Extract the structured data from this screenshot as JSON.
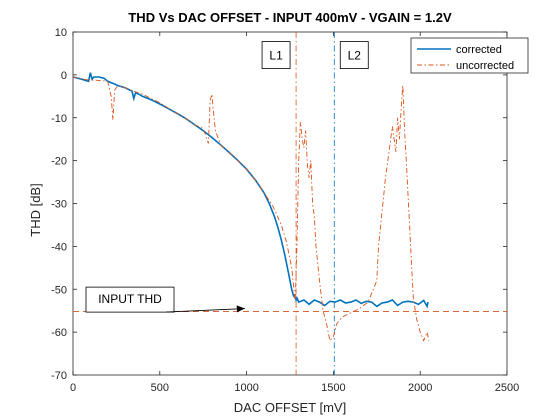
{
  "chart_data": {
    "type": "line",
    "title": "THD Vs DAC OFFSET - INPUT 400mV - VGAIN = 1.2V",
    "xlabel": "DAC OFFSET [mV]",
    "ylabel": "THD [dB]",
    "xlim": [
      0,
      2500
    ],
    "ylim": [
      -70,
      10
    ],
    "xticks": [
      0,
      500,
      1000,
      1500,
      2000,
      2500
    ],
    "yticks": [
      10,
      0,
      -10,
      -20,
      -30,
      -40,
      -50,
      -60,
      -70
    ],
    "grid": false,
    "legend_position": "top-right",
    "colors": {
      "corrected": "#0072BD",
      "uncorrected": "#D95319",
      "axis": "#262626"
    },
    "series": [
      {
        "name": "corrected",
        "style": "solid",
        "x": [
          0,
          50,
          90,
          100,
          110,
          120,
          150,
          180,
          200,
          230,
          260,
          300,
          340,
          350,
          360,
          380,
          400,
          450,
          500,
          550,
          600,
          650,
          700,
          750,
          800,
          850,
          900,
          950,
          1000,
          1050,
          1100,
          1130,
          1160,
          1180,
          1200,
          1220,
          1240,
          1260,
          1270,
          1280,
          1285,
          1290,
          1300,
          1330,
          1360,
          1390,
          1420,
          1450,
          1480,
          1510,
          1540,
          1570,
          1600,
          1630,
          1660,
          1690,
          1720,
          1750,
          1780,
          1810,
          1840,
          1870,
          1900,
          1930,
          1960,
          1990,
          2020,
          2040,
          2045
        ],
        "y": [
          -0.5,
          -1,
          -1.5,
          0.5,
          -1,
          -0.5,
          -0.5,
          -0.8,
          -1.5,
          -2,
          -2.5,
          -3,
          -3.8,
          -5.5,
          -4.2,
          -4.5,
          -5,
          -5.8,
          -6.8,
          -7.9,
          -9,
          -10.2,
          -11.6,
          -13,
          -14.6,
          -16.3,
          -18.1,
          -20,
          -22,
          -24.5,
          -27.5,
          -30,
          -33,
          -35.5,
          -38.5,
          -42,
          -46,
          -50,
          -51.5,
          -52,
          -52.5,
          -52,
          -53,
          -52.5,
          -53.5,
          -52.5,
          -53,
          -53.8,
          -52.8,
          -53,
          -52.5,
          -53.2,
          -53,
          -52.5,
          -53.3,
          -52.8,
          -53,
          -54,
          -53.2,
          -53,
          -52.5,
          -53.8,
          -53,
          -52.8,
          -53,
          -53.5,
          -52.6,
          -54,
          -53
        ]
      },
      {
        "name": "uncorrected",
        "style": "dash-dot",
        "x": [
          0,
          50,
          100,
          150,
          200,
          220,
          230,
          240,
          260,
          300,
          350,
          400,
          450,
          500,
          550,
          600,
          650,
          700,
          750,
          780,
          790,
          800,
          810,
          820,
          850,
          900,
          950,
          1000,
          1050,
          1100,
          1150,
          1200,
          1230,
          1260,
          1280,
          1290,
          1300,
          1310,
          1320,
          1330,
          1340,
          1350,
          1360,
          1370,
          1380,
          1390,
          1400,
          1420,
          1440,
          1460,
          1480,
          1500,
          1520,
          1550,
          1600,
          1650,
          1700,
          1750,
          1760,
          1780,
          1800,
          1820,
          1840,
          1860,
          1870,
          1880,
          1890,
          1900,
          1910,
          1920,
          1930,
          1940,
          1950,
          1960,
          1980,
          2000,
          2020,
          2040,
          2050
        ],
        "y": [
          -0.5,
          -1,
          -1.2,
          -1.3,
          -1.5,
          -5,
          -10.5,
          -3.5,
          -2.5,
          -3,
          -3.8,
          -4.5,
          -5.5,
          -6.5,
          -7.8,
          -9,
          -10.2,
          -11.6,
          -12.5,
          -16,
          -6,
          -4.5,
          -9,
          -13,
          -16.3,
          -18.1,
          -20,
          -22,
          -24.5,
          -27.5,
          -30.5,
          -35,
          -39,
          -45,
          -53,
          -40,
          -20,
          -11,
          -15,
          -17,
          -13,
          -21,
          -24,
          -20,
          -30,
          -33,
          -40,
          -48,
          -55,
          -58,
          -62,
          -61,
          -58,
          -56.5,
          -55.5,
          -54.5,
          -53,
          -48,
          -40,
          -32,
          -24,
          -18,
          -12,
          -18,
          -10,
          -15,
          -8,
          -2.5,
          -13,
          -20,
          -28,
          -36,
          -44,
          -52,
          -57,
          -60,
          -62,
          -60,
          -62
        ]
      }
    ],
    "reference_lines": [
      {
        "orientation": "vertical",
        "x": 1285,
        "label": "L1",
        "color": "#D95319"
      },
      {
        "orientation": "vertical",
        "x": 1505,
        "label": "L2",
        "color": "#0072BD"
      },
      {
        "orientation": "horizontal",
        "y": -55.2,
        "label": "INPUT THD",
        "color": "#D95319"
      }
    ]
  }
}
